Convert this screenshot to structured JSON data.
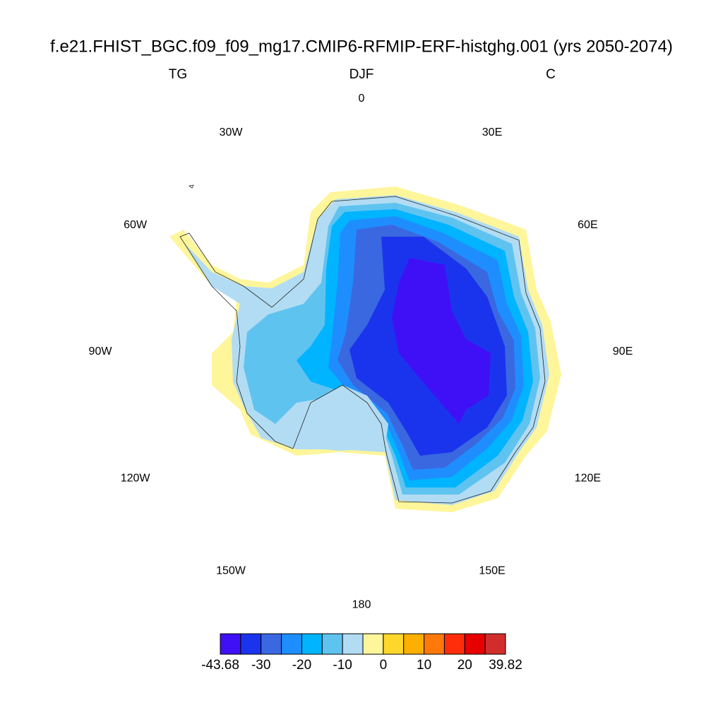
{
  "title": "f.e21.FHIST_BGC.f09_f09_mg17.CMIP6-RFMIP-ERF-histghg.001 (yrs 2050-2074)",
  "subtitle": {
    "left": "TG",
    "center": "DJF",
    "right": "C"
  },
  "longitude_labels": [
    "0",
    "30E",
    "60E",
    "90E",
    "120E",
    "150E",
    "180",
    "150W",
    "120W",
    "90W",
    "60W",
    "30W"
  ],
  "colorbar": {
    "colors": [
      "#3f10f5",
      "#1a34ee",
      "#3a68e0",
      "#1e8eff",
      "#00b4ff",
      "#5fc3f0",
      "#b2dcf3",
      "#fff59a",
      "#ffd72a",
      "#ffaf00",
      "#ff780a",
      "#ff2d0a",
      "#e60000",
      "#d22d2d"
    ],
    "labels": [
      "-43.68",
      "-30",
      "-20",
      "-10",
      "0",
      "10",
      "20",
      "39.82"
    ]
  }
}
